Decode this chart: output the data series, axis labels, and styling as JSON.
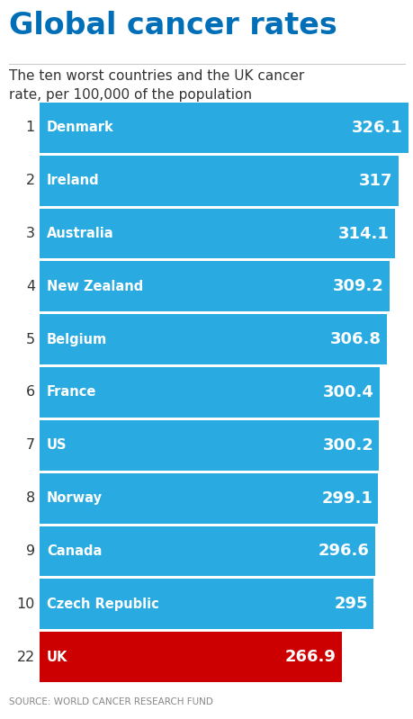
{
  "title": "Global cancer rates",
  "subtitle": "The ten worst countries and the UK cancer\nrate, per 100,000 of the population",
  "source": "SOURCE: WORLD CANCER RESEARCH FUND",
  "ranks": [
    1,
    2,
    3,
    4,
    5,
    6,
    7,
    8,
    9,
    10,
    22
  ],
  "countries": [
    "Denmark",
    "Ireland",
    "Australia",
    "New Zealand",
    "Belgium",
    "France",
    "US",
    "Norway",
    "Canada",
    "Czech Republic",
    "UK"
  ],
  "values": [
    326.1,
    317,
    314.1,
    309.2,
    306.8,
    300.4,
    300.2,
    299.1,
    296.6,
    295,
    266.9
  ],
  "value_labels": [
    "326.1",
    "317",
    "314.1",
    "309.2",
    "306.8",
    "300.4",
    "300.2",
    "299.1",
    "296.6",
    "295",
    "266.9"
  ],
  "bar_colors": [
    "#29ABE2",
    "#29ABE2",
    "#29ABE2",
    "#29ABE2",
    "#29ABE2",
    "#29ABE2",
    "#29ABE2",
    "#29ABE2",
    "#29ABE2",
    "#29ABE2",
    "#CC0000"
  ],
  "title_color": "#006FB8",
  "background_color": "#FFFFFF",
  "bar_text_color": "#FFFFFF",
  "rank_text_color": "#333333",
  "subtitle_color": "#333333",
  "source_color": "#888888"
}
